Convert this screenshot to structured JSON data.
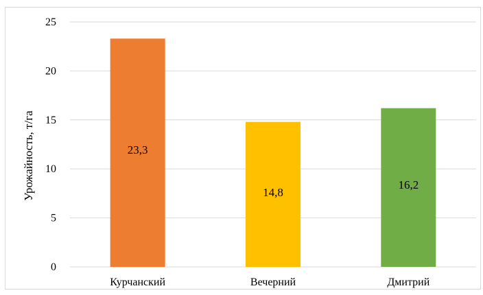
{
  "chart_data": {
    "type": "bar",
    "categories": [
      "Курчанский",
      "Вечерний",
      "Дмитрий"
    ],
    "values": [
      23.3,
      14.8,
      16.2
    ],
    "value_labels": [
      "23,3",
      "14,8",
      "16,2"
    ],
    "colors": [
      "#ED7D31",
      "#FFC000",
      "#70AD47"
    ],
    "title": "",
    "xlabel": "",
    "ylabel": "Урожайность, т/га",
    "ylim": [
      0,
      25
    ],
    "yticks": [
      "0",
      "5",
      "10",
      "15",
      "20",
      "25"
    ],
    "grid": true,
    "legend": false,
    "gridline_color": "#d9d9d9"
  }
}
